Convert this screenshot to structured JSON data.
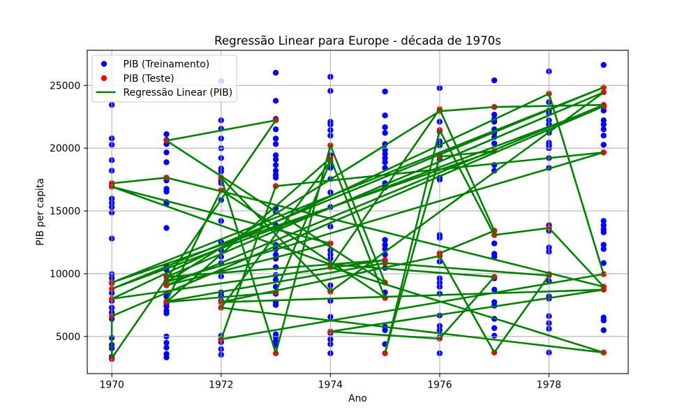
{
  "chart_data": {
    "type": "scatter",
    "title": "Regressão Linear para Europe - década de 1970s",
    "xlabel": "Ano",
    "ylabel": "PIB per capita",
    "xlim": [
      1969.55,
      1979.45
    ],
    "ylim": [
      2040,
      27800
    ],
    "x_ticks": [
      1970,
      1972,
      1974,
      1976,
      1978
    ],
    "y_ticks": [
      5000,
      10000,
      15000,
      20000,
      25000
    ],
    "grid": true,
    "legend": "top-left",
    "series": [
      {
        "name": "PIB (Treinamento)",
        "kind": "scatter",
        "color": "#0000ff",
        "points_by_year": [
          {
            "x": 1970,
            "y": [
              23450,
              20780,
              20270,
              19050,
              18210,
              17200,
              16980,
              15980,
              15650,
              15310,
              14870,
              12800,
              9960,
              9630,
              9240,
              8460,
              7840,
              7290,
              6900,
              6400,
              4890,
              4330,
              4050,
              3380,
              3210
            ]
          },
          {
            "x": 1971,
            "y": [
              21110,
              20660,
              20330,
              19660,
              18880,
              17430,
              16760,
              16540,
              15700,
              15590,
              13640,
              10630,
              10300,
              9740,
              9400,
              8400,
              8180,
              7620,
              7400,
              7060,
              6840,
              5000,
              4500,
              4110,
              3610,
              3330
            ]
          },
          {
            "x": 1972,
            "y": [
              25350,
              22220,
              21550,
              20770,
              19990,
              19210,
              18380,
              18150,
              17430,
              17210,
              15870,
              14200,
              12520,
              11860,
              11350,
              10850,
              10180,
              9790,
              8510,
              8230,
              7840,
              7290,
              5060,
              4550,
              4000,
              3550
            ]
          },
          {
            "x": 1973,
            "y": [
              26010,
              23780,
              22330,
              21500,
              20770,
              20330,
              19440,
              19100,
              18660,
              18210,
              17880,
              17650,
              15200,
              14920,
              13860,
              13640,
              12300,
              11970,
              11520,
              11190,
              10520,
              9900,
              9510,
              8960,
              8400,
              7730,
              7510,
              5170,
              4940,
              4610,
              4280
            ]
          },
          {
            "x": 1974,
            "y": [
              25680,
              24560,
              22110,
              21890,
              21440,
              21000,
              19440,
              18660,
              18430,
              17540,
              16480,
              15310,
              13750,
              12410,
              11860,
              11520,
              11190,
              10520,
              9070,
              8620,
              7840,
              6560,
              5280,
              4780,
              4390,
              3660
            ]
          },
          {
            "x": 1975,
            "y": [
              24510,
              22610,
              21670,
              21220,
              20330,
              19880,
              19550,
              19210,
              18880,
              18430,
              17210,
              16870,
              12690,
              12300,
              11970,
              11520,
              10850,
              10460,
              8510,
              5780,
              5500,
              4390
            ]
          },
          {
            "x": 1976,
            "y": [
              24790,
              22110,
              21330,
              20550,
              20220,
              19440,
              19100,
              17650,
              17490,
              13080,
              12860,
              10960,
              9630,
              9290,
              8960,
              8400,
              6670,
              5840,
              5500,
              4940,
              3660
            ]
          },
          {
            "x": 1977,
            "y": [
              25400,
              22670,
              22330,
              22110,
              21500,
              21220,
              20890,
              20380,
              18660,
              18210,
              12410,
              11580,
              11350,
              9630,
              8730,
              7730,
              7450,
              6400,
              5670,
              5060
            ]
          },
          {
            "x": 1978,
            "y": [
              26120,
              23670,
              23000,
              22780,
              22220,
              21890,
              21220,
              20440,
              20220,
              20000,
              19210,
              18430,
              13860,
              13420,
              12080,
              11750,
              9960,
              9400,
              8180,
              8010,
              6620,
              6060,
              5610,
              3720
            ]
          },
          {
            "x": 1979,
            "y": [
              26630,
              23280,
              23000,
              22220,
              21890,
              21500,
              21000,
              20270,
              19660,
              14200,
              13860,
              13530,
              13300,
              12300,
              11970,
              10850,
              6510,
              6280,
              5500
            ]
          }
        ]
      },
      {
        "name": "PIB (Teste)",
        "kind": "scatter",
        "color": "#ff0000",
        "points_by_year": [
          {
            "x": 1970,
            "y": [
              17200,
              16930,
              9290,
              8790,
              8000,
              6620,
              3270
            ]
          },
          {
            "x": 1971,
            "y": [
              20600,
              17650,
              9740,
              9350,
              9070,
              7790,
              7730
            ]
          },
          {
            "x": 1972,
            "y": [
              17650,
              16650,
              7730,
              7290,
              4780
            ]
          },
          {
            "x": 1973,
            "y": [
              22220,
              16980,
              8510,
              3660
            ]
          },
          {
            "x": 1974,
            "y": [
              20220,
              19210,
              18940,
              12410,
              10740,
              10520,
              8570,
              5390
            ]
          },
          {
            "x": 1975,
            "y": [
              11080,
              10850,
              9290,
              8070,
              3660
            ]
          },
          {
            "x": 1976,
            "y": [
              23110,
              22950,
              21440,
              19320,
              11630,
              11410,
              4830
            ]
          },
          {
            "x": 1977,
            "y": [
              23280,
              19770,
              13420,
              13080,
              9740,
              3720
            ]
          },
          {
            "x": 1978,
            "y": [
              24340,
              13640,
              9850
            ]
          },
          {
            "x": 1979,
            "y": [
              24840,
              24450,
              23450,
              23340,
              19660,
              9960,
              8960,
              8730,
              3720
            ]
          }
        ]
      },
      {
        "name": "Regressão Linear (PIB)",
        "kind": "line",
        "color": "#008000",
        "points": [
          [
            1970,
            17200
          ],
          [
            1971,
            17650
          ],
          [
            1979,
            8960
          ],
          [
            1978,
            13640
          ],
          [
            1977,
            13080
          ],
          [
            1976,
            21440
          ],
          [
            1975,
            3660
          ],
          [
            1976,
            19320
          ],
          [
            1977,
            19770
          ],
          [
            1970,
            9290
          ],
          [
            1979,
            24840
          ],
          [
            1970,
            8790
          ],
          [
            1979,
            23340
          ],
          [
            1970,
            6620
          ],
          [
            1970,
            3270
          ],
          [
            1973,
            22220
          ],
          [
            1971,
            20600
          ],
          [
            1975,
            9290
          ],
          [
            1974,
            20220
          ],
          [
            1973,
            3660
          ],
          [
            1972,
            17650
          ],
          [
            1974,
            8570
          ],
          [
            1979,
            24450
          ],
          [
            1971,
            9740
          ],
          [
            1975,
            11080
          ],
          [
            1970,
            8000
          ],
          [
            1978,
            24340
          ],
          [
            1979,
            9960
          ],
          [
            1972,
            4780
          ],
          [
            1973,
            16980
          ],
          [
            1979,
            19660
          ],
          [
            1971,
            9350
          ],
          [
            1976,
            22950
          ],
          [
            1977,
            23280
          ],
          [
            1979,
            23450
          ],
          [
            1971,
            9070
          ],
          [
            1974,
            12410
          ],
          [
            1970,
            16930
          ],
          [
            1974,
            10740
          ],
          [
            1977,
            9740
          ],
          [
            1976,
            4830
          ],
          [
            1974,
            5390
          ],
          [
            1979,
            8730
          ],
          [
            1972,
            7730
          ],
          [
            1976,
            11410
          ],
          [
            1977,
            3720
          ],
          [
            1978,
            9850
          ],
          [
            1975,
            10850
          ],
          [
            1971,
            7790
          ],
          [
            1972,
            16650
          ],
          [
            1975,
            8070
          ],
          [
            1974,
            19210
          ],
          [
            1971,
            7730
          ],
          [
            1973,
            8510
          ],
          [
            1974,
            18940
          ],
          [
            1972,
            7290
          ],
          [
            1979,
            3720
          ],
          [
            1974,
            10520
          ],
          [
            1976,
            23110
          ],
          [
            1977,
            13420
          ],
          [
            1976,
            11630
          ]
        ]
      }
    ]
  }
}
